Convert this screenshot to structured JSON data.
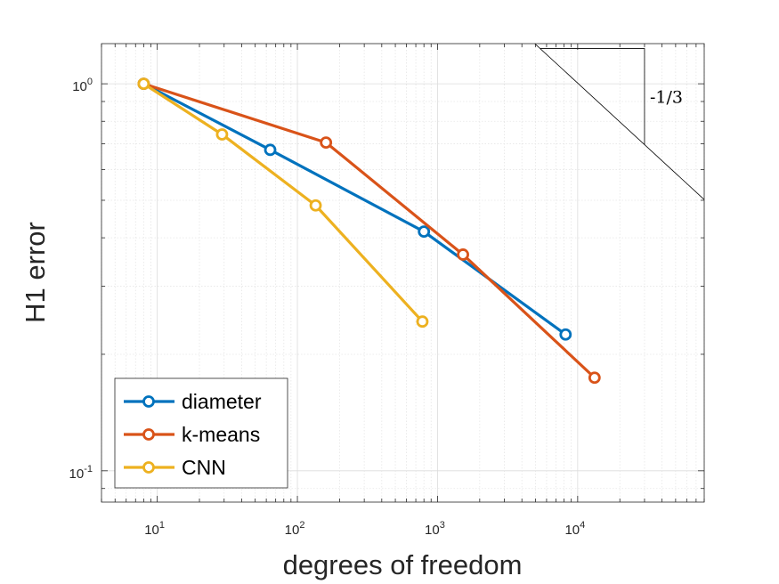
{
  "chart_data": {
    "type": "line",
    "xscale": "log",
    "yscale": "log",
    "xlabel": "degrees of freedom",
    "ylabel": "H1 error",
    "xlim": [
      4,
      80000
    ],
    "ylim": [
      0.083,
      1.27
    ],
    "x_ticks": [
      {
        "value": 10,
        "base": "10",
        "exp": "1"
      },
      {
        "value": 100,
        "base": "10",
        "exp": "2"
      },
      {
        "value": 1000,
        "base": "10",
        "exp": "3"
      },
      {
        "value": 10000,
        "base": "10",
        "exp": "4"
      }
    ],
    "y_ticks": [
      {
        "value": 0.1,
        "base": "10",
        "exp": "-1"
      },
      {
        "value": 1,
        "base": "10",
        "exp": "0"
      }
    ],
    "grid": true,
    "minor_grid": true,
    "legend_position": "bottom-left",
    "series": [
      {
        "name": "diameter",
        "color": "#0072BD",
        "x": [
          8,
          64,
          800,
          8200
        ],
        "y": [
          1.0,
          0.675,
          0.415,
          0.225
        ]
      },
      {
        "name": "k-means",
        "color": "#D95319",
        "x": [
          8,
          160,
          1520,
          13200
        ],
        "y": [
          1.0,
          0.705,
          0.362,
          0.174
        ]
      },
      {
        "name": "CNN",
        "color": "#EDB120",
        "x": [
          8,
          29,
          135,
          780
        ],
        "y": [
          1.0,
          0.74,
          0.485,
          0.243
        ]
      }
    ],
    "slope_annotation": {
      "label": "-1/3",
      "slope": -0.3333,
      "line_color": "#000000"
    }
  }
}
